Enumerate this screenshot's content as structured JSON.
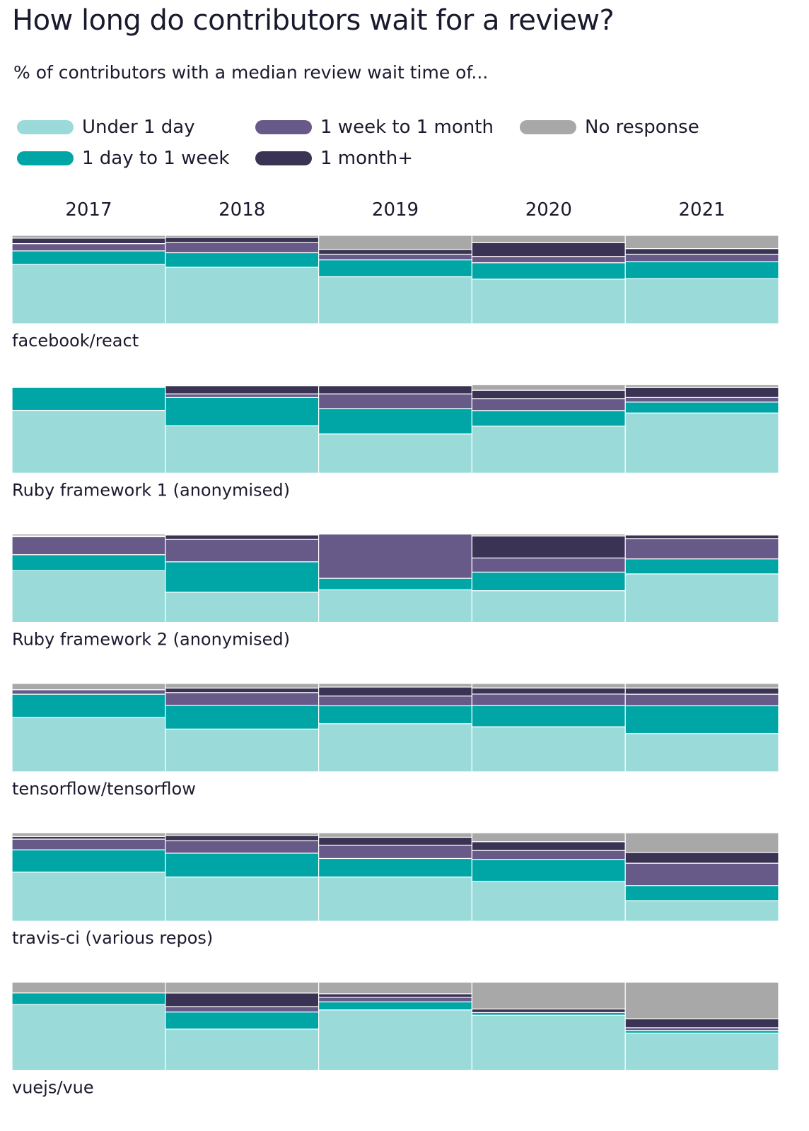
{
  "title": "How long do contributors wait for a review?",
  "subtitle": "% of contributors with a median review wait time of...",
  "chart_data": {
    "type": "bar",
    "stacked": true,
    "normalized": true,
    "title": "How long do contributors wait for a review?",
    "subtitle": "% of contributors with a median review wait time of...",
    "years": [
      "2017",
      "2018",
      "2019",
      "2020",
      "2021"
    ],
    "categories": [
      "Under 1 day",
      "1 day to 1 week",
      "1 week to 1 month",
      "1 month+",
      "No response"
    ],
    "colors": {
      "Under 1 day": "#9adbd9",
      "1 day to 1 week": "#00a6a6",
      "1 week to 1 month": "#675988",
      "1 month+": "#3a3353",
      "No response": "#a8a8a8"
    },
    "legend_placement": "top",
    "repos": [
      {
        "name": "facebook/react",
        "values": [
          [
            65,
            15,
            8,
            6,
            3
          ],
          [
            62,
            16,
            11,
            6,
            2
          ],
          [
            50,
            18,
            6,
            5,
            15
          ],
          [
            49,
            18,
            7,
            15,
            8
          ],
          [
            48,
            18,
            8,
            6,
            14
          ]
        ]
      },
      {
        "name": "Ruby framework 1 (anonymised)",
        "values": [
          [
            71,
            26,
            1,
            1,
            1
          ],
          [
            52,
            31,
            4,
            9,
            1
          ],
          [
            43,
            28,
            16,
            9,
            1
          ],
          [
            51,
            17,
            13,
            9,
            6
          ],
          [
            66,
            12,
            5,
            11,
            3
          ]
        ]
      },
      {
        "name": "Ruby framework 2 (anonymised)",
        "values": [
          [
            58,
            18,
            20,
            1,
            2
          ],
          [
            34,
            34,
            25,
            5,
            1
          ],
          [
            37,
            13,
            50,
            0,
            0
          ],
          [
            36,
            21,
            16,
            25,
            2
          ],
          [
            55,
            17,
            23,
            4,
            1
          ]
        ]
      },
      {
        "name": "tensorflow/tensorflow",
        "values": [
          [
            61,
            26,
            5,
            0,
            7
          ],
          [
            47,
            26,
            14,
            5,
            5
          ],
          [
            54,
            20,
            11,
            10,
            4
          ],
          [
            51,
            24,
            13,
            7,
            5
          ],
          [
            43,
            31,
            13,
            7,
            5
          ]
        ]
      },
      {
        "name": "travis-ci (various repos)",
        "values": [
          [
            55,
            25,
            12,
            3,
            4
          ],
          [
            50,
            27,
            14,
            6,
            3
          ],
          [
            50,
            21,
            15,
            9,
            5
          ],
          [
            45,
            25,
            10,
            10,
            10
          ],
          [
            23,
            17,
            25,
            12,
            22
          ]
        ]
      },
      {
        "name": "vuejs/vue",
        "values": [
          [
            74,
            13,
            0,
            0,
            12
          ],
          [
            46,
            19,
            6,
            15,
            12
          ],
          [
            68,
            9,
            5,
            4,
            13
          ],
          [
            62,
            3,
            0,
            4,
            30
          ],
          [
            42,
            3,
            3,
            10,
            41
          ]
        ]
      }
    ]
  }
}
